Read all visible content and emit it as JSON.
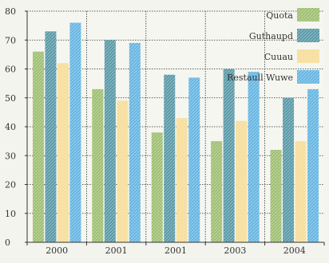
{
  "chart_data": {
    "type": "bar",
    "title": "",
    "xlabel": "",
    "ylabel": "",
    "categories": [
      "2000",
      "2001",
      "2001",
      "2003",
      "2004"
    ],
    "ylim": [
      0,
      80
    ],
    "yticks": [
      0,
      10,
      20,
      30,
      40,
      50,
      60,
      70,
      80
    ],
    "grid": true,
    "legend_position": "top-right",
    "series": [
      {
        "name": "Quota",
        "values": [
          66,
          53,
          38,
          35,
          32
        ],
        "color": "#9fbf72"
      },
      {
        "name": "Guthaupd",
        "values": [
          73,
          70,
          58,
          60,
          50
        ],
        "color": "#5a9aa8"
      },
      {
        "name": "Cuuau",
        "values": [
          62,
          49,
          43,
          42,
          35
        ],
        "color": "#f6dd98"
      },
      {
        "name": "Restaull Wuwe",
        "values": [
          76,
          69,
          57,
          59,
          53
        ],
        "color": "#66b6e2"
      }
    ]
  }
}
